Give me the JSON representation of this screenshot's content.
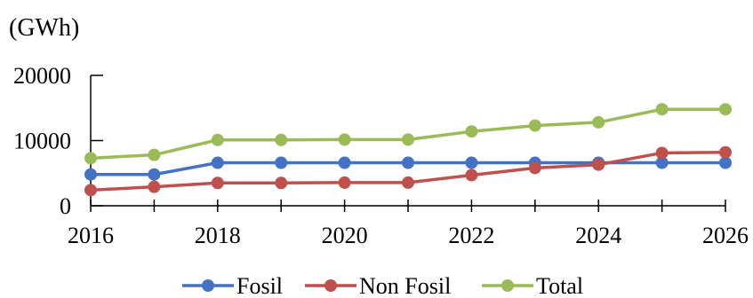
{
  "chart_data": {
    "type": "line",
    "unit_label": "(GWh)",
    "x": [
      2016,
      2017,
      2018,
      2019,
      2020,
      2021,
      2022,
      2023,
      2024,
      2025,
      2026
    ],
    "x_ticks": [
      "2016",
      "2018",
      "2020",
      "2022",
      "2024",
      "2026"
    ],
    "y_ticks": [
      "0",
      "10000",
      "20000"
    ],
    "ylim": [
      0,
      20000
    ],
    "grid": false,
    "legend_position": "bottom",
    "series": [
      {
        "name": "Fosil",
        "color": "#4472c4",
        "values": [
          4800,
          4800,
          6600,
          6600,
          6600,
          6600,
          6600,
          6600,
          6600,
          6600,
          6600
        ]
      },
      {
        "name": "Non Fosil",
        "color": "#c0504d",
        "values": [
          2400,
          2900,
          3500,
          3500,
          3550,
          3550,
          4700,
          5800,
          6300,
          8100,
          8200
        ]
      },
      {
        "name": "Total",
        "color": "#9bbb59",
        "values": [
          7300,
          7800,
          10100,
          10100,
          10150,
          10150,
          11400,
          12300,
          12800,
          14800,
          14800
        ]
      }
    ]
  }
}
